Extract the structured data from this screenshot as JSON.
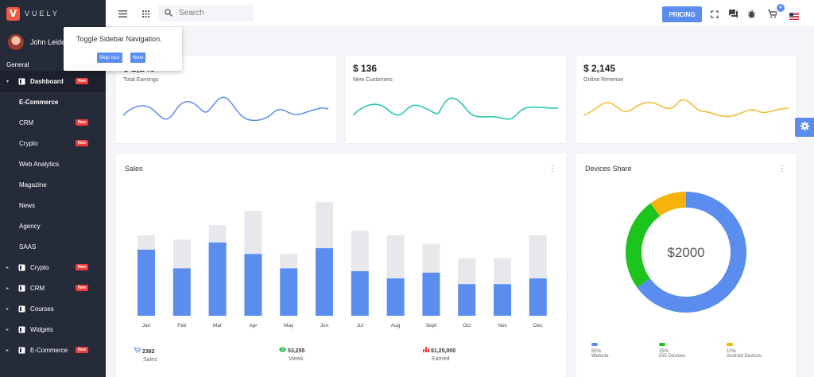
{
  "brand": {
    "letter": "V",
    "name": "VUELY"
  },
  "user": {
    "name": "John Leider"
  },
  "sidebar": {
    "section": "General",
    "items": [
      {
        "label": "Dashboard",
        "badge": "New",
        "type": "parent",
        "active": true
      },
      {
        "label": "E-Commerce",
        "badge": "",
        "type": "child",
        "current": true
      },
      {
        "label": "CRM",
        "badge": "New",
        "type": "child"
      },
      {
        "label": "Crypto",
        "badge": "New",
        "type": "child"
      },
      {
        "label": "Web Analytics",
        "badge": "",
        "type": "child"
      },
      {
        "label": "Magazine",
        "badge": "",
        "type": "child"
      },
      {
        "label": "News",
        "badge": "",
        "type": "child"
      },
      {
        "label": "Agency",
        "badge": "",
        "type": "child"
      },
      {
        "label": "SAAS",
        "badge": "",
        "type": "child"
      },
      {
        "label": "Crypto",
        "badge": "New",
        "type": "parent"
      },
      {
        "label": "CRM",
        "badge": "New",
        "type": "parent"
      },
      {
        "label": "Courses",
        "badge": "",
        "type": "parent"
      },
      {
        "label": "Widgets",
        "badge": "",
        "type": "parent"
      },
      {
        "label": "E-Commerce",
        "badge": "New",
        "type": "parent"
      }
    ]
  },
  "header": {
    "search_placeholder": "Search",
    "pricing_label": "PRICING",
    "cart_count": "4"
  },
  "tour": {
    "text": "Toggle Sidebar Navigation.",
    "skip_label": "Skip tour",
    "next_label": "Next"
  },
  "stats": [
    {
      "value": "$ 2,145",
      "label": "Total Earnings",
      "color": "#5b8def"
    },
    {
      "value": "$ 136",
      "label": "New Customers",
      "color": "#1ec4b0"
    },
    {
      "value": "$ 2,145",
      "label": "Online Revenue",
      "color": "#f5b82e"
    }
  ],
  "sales": {
    "title": "Sales",
    "footer": [
      {
        "value": "2382",
        "label": "Sales",
        "icon": "cart-icon",
        "color": "#5b8def"
      },
      {
        "value": "53,255",
        "label": "Views",
        "icon": "eye-icon",
        "color": "#22b14c"
      },
      {
        "value": "$1,25,000",
        "label": "Earned",
        "icon": "bar-chart-icon",
        "color": "#ef3b3b"
      }
    ]
  },
  "devices": {
    "title": "Devices Share",
    "center_label": "$2000",
    "legend": [
      {
        "pct": "65%",
        "label": "Website",
        "color": "#5b8def"
      },
      {
        "pct": "25%",
        "label": "iOS Devices",
        "color": "#1ec41e"
      },
      {
        "pct": "10%",
        "label": "Android Devices",
        "color": "#f5b20b"
      }
    ]
  },
  "chart_data": [
    {
      "type": "bar",
      "title": "Sales",
      "categories": [
        "Jan",
        "Feb",
        "Mar",
        "Apr",
        "May",
        "Jun",
        "Jul",
        "Aug",
        "Sept",
        "Oct",
        "Nov",
        "Dec"
      ],
      "series": [
        {
          "values": [
            46,
            33,
            51,
            43,
            33,
            47,
            31,
            26,
            30,
            22,
            22,
            26
          ]
        },
        {
          "values": [
            10,
            20,
            12,
            30,
            10,
            32,
            28,
            30,
            20,
            18,
            18,
            30
          ]
        }
      ],
      "stacked": true,
      "colors": [
        "#5b8def",
        "#e6e8ec"
      ],
      "ylim": [
        0,
        83
      ],
      "grid": false
    },
    {
      "type": "pie",
      "title": "Devices Share",
      "categories": [
        "Website",
        "iOS Devices",
        "Android Devices"
      ],
      "values": [
        65,
        25,
        10
      ],
      "colors": [
        "#5b8def",
        "#1ec41e",
        "#f5b20b"
      ],
      "donut": true
    }
  ]
}
